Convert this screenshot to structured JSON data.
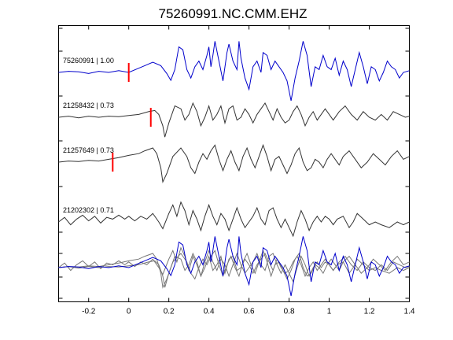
{
  "chart_data": {
    "type": "line",
    "title": "75260991.NC.CMM.EHZ",
    "xlabel": "",
    "ylabel": "",
    "xlim": [
      -0.35,
      1.4
    ],
    "xticks": [
      -0.2,
      0,
      0.2,
      0.4,
      0.6,
      0.8,
      1,
      1.2,
      1.4
    ],
    "xtick_labels": [
      "-0.2",
      "0",
      "0.2",
      "0.4",
      "0.6",
      "0.8",
      "1",
      "1.2",
      "1.4"
    ],
    "grid": false,
    "colors": {
      "primary": "#0000cc",
      "secondary": "#333333",
      "overlay": "#777777",
      "pick": "#ff0000"
    },
    "traces": [
      {
        "label": "75260991 | 1.00",
        "color": "#0000cc",
        "pick_time": 0.0,
        "samples": [
          [
            -0.35,
            0.0
          ],
          [
            -0.3,
            0.02
          ],
          [
            -0.25,
            0.01
          ],
          [
            -0.2,
            -0.02
          ],
          [
            -0.15,
            0.02
          ],
          [
            -0.1,
            0.0
          ],
          [
            -0.05,
            0.03
          ],
          [
            0.0,
            0.0
          ],
          [
            0.04,
            0.06
          ],
          [
            0.08,
            0.12
          ],
          [
            0.12,
            0.18
          ],
          [
            0.16,
            0.12
          ],
          [
            0.19,
            -0.02
          ],
          [
            0.21,
            -0.14
          ],
          [
            0.23,
            0.05
          ],
          [
            0.25,
            0.45
          ],
          [
            0.27,
            0.4
          ],
          [
            0.29,
            0.05
          ],
          [
            0.31,
            -0.1
          ],
          [
            0.33,
            0.1
          ],
          [
            0.35,
            0.2
          ],
          [
            0.37,
            0.05
          ],
          [
            0.39,
            0.3
          ],
          [
            0.4,
            0.45
          ],
          [
            0.41,
            0.1
          ],
          [
            0.42,
            0.3
          ],
          [
            0.43,
            0.55
          ],
          [
            0.45,
            0.2
          ],
          [
            0.47,
            -0.15
          ],
          [
            0.49,
            0.35
          ],
          [
            0.5,
            0.5
          ],
          [
            0.52,
            0.2
          ],
          [
            0.54,
            0.05
          ],
          [
            0.55,
            0.55
          ],
          [
            0.56,
            0.25
          ],
          [
            0.58,
            -0.1
          ],
          [
            0.6,
            -0.3
          ],
          [
            0.62,
            0.1
          ],
          [
            0.64,
            0.2
          ],
          [
            0.66,
            0.0
          ],
          [
            0.67,
            0.35
          ],
          [
            0.69,
            0.3
          ],
          [
            0.71,
            0.05
          ],
          [
            0.73,
            0.2
          ],
          [
            0.75,
            0.1
          ],
          [
            0.77,
            0.0
          ],
          [
            0.79,
            -0.15
          ],
          [
            0.81,
            -0.5
          ],
          [
            0.83,
            -0.1
          ],
          [
            0.85,
            0.2
          ],
          [
            0.87,
            0.55
          ],
          [
            0.89,
            0.3
          ],
          [
            0.91,
            -0.25
          ],
          [
            0.93,
            0.1
          ],
          [
            0.95,
            0.05
          ],
          [
            0.97,
            0.3
          ],
          [
            0.99,
            0.1
          ],
          [
            1.01,
            0.05
          ],
          [
            1.03,
            0.25
          ],
          [
            1.05,
            -0.05
          ],
          [
            1.07,
            0.2
          ],
          [
            1.09,
            0.05
          ],
          [
            1.11,
            -0.25
          ],
          [
            1.13,
            0.05
          ],
          [
            1.15,
            0.35
          ],
          [
            1.17,
            0.1
          ],
          [
            1.19,
            -0.2
          ],
          [
            1.21,
            0.1
          ],
          [
            1.23,
            0.05
          ],
          [
            1.25,
            -0.15
          ],
          [
            1.27,
            0.0
          ],
          [
            1.29,
            0.2
          ],
          [
            1.31,
            0.1
          ],
          [
            1.33,
            0.05
          ],
          [
            1.35,
            -0.1
          ],
          [
            1.37,
            0.0
          ],
          [
            1.4,
            0.03
          ]
        ]
      },
      {
        "label": "21258432 | 0.73",
        "color": "#333333",
        "pick_time": 0.11,
        "samples": [
          [
            -0.35,
            0.0
          ],
          [
            -0.3,
            0.02
          ],
          [
            -0.25,
            -0.01
          ],
          [
            -0.2,
            0.02
          ],
          [
            -0.15,
            0.0
          ],
          [
            -0.1,
            0.02
          ],
          [
            -0.05,
            0.01
          ],
          [
            0.0,
            0.03
          ],
          [
            0.05,
            0.05
          ],
          [
            0.1,
            0.1
          ],
          [
            0.13,
            0.12
          ],
          [
            0.15,
            0.05
          ],
          [
            0.17,
            -0.15
          ],
          [
            0.18,
            -0.35
          ],
          [
            0.2,
            -0.1
          ],
          [
            0.23,
            0.2
          ],
          [
            0.26,
            0.15
          ],
          [
            0.28,
            -0.05
          ],
          [
            0.3,
            0.05
          ],
          [
            0.32,
            0.25
          ],
          [
            0.34,
            0.1
          ],
          [
            0.36,
            -0.15
          ],
          [
            0.38,
            0.0
          ],
          [
            0.4,
            0.2
          ],
          [
            0.42,
            -0.05
          ],
          [
            0.44,
            0.05
          ],
          [
            0.46,
            0.2
          ],
          [
            0.48,
            -0.1
          ],
          [
            0.5,
            0.15
          ],
          [
            0.52,
            0.2
          ],
          [
            0.54,
            -0.05
          ],
          [
            0.56,
            0.0
          ],
          [
            0.58,
            0.15
          ],
          [
            0.6,
            0.05
          ],
          [
            0.62,
            -0.1
          ],
          [
            0.64,
            0.05
          ],
          [
            0.66,
            0.15
          ],
          [
            0.68,
            0.25
          ],
          [
            0.7,
            0.1
          ],
          [
            0.72,
            -0.05
          ],
          [
            0.74,
            0.15
          ],
          [
            0.76,
            0.0
          ],
          [
            0.78,
            -0.1
          ],
          [
            0.8,
            -0.05
          ],
          [
            0.82,
            0.1
          ],
          [
            0.84,
            0.2
          ],
          [
            0.86,
            0.05
          ],
          [
            0.88,
            -0.15
          ],
          [
            0.9,
            0.0
          ],
          [
            0.92,
            0.1
          ],
          [
            0.94,
            -0.05
          ],
          [
            0.96,
            0.05
          ],
          [
            0.98,
            0.15
          ],
          [
            1.0,
            0.05
          ],
          [
            1.02,
            -0.05
          ],
          [
            1.05,
            0.1
          ],
          [
            1.08,
            0.2
          ],
          [
            1.11,
            0.05
          ],
          [
            1.14,
            -0.05
          ],
          [
            1.17,
            0.1
          ],
          [
            1.2,
            0.0
          ],
          [
            1.23,
            -0.05
          ],
          [
            1.26,
            0.05
          ],
          [
            1.29,
            -0.05
          ],
          [
            1.32,
            0.1
          ],
          [
            1.35,
            0.05
          ],
          [
            1.38,
            0.0
          ],
          [
            1.4,
            0.02
          ]
        ]
      },
      {
        "label": "21257649 | 0.73",
        "color": "#333333",
        "pick_time": -0.08,
        "samples": [
          [
            -0.35,
            0.0
          ],
          [
            -0.3,
            0.02
          ],
          [
            -0.25,
            0.01
          ],
          [
            -0.2,
            0.03
          ],
          [
            -0.15,
            0.02
          ],
          [
            -0.1,
            0.05
          ],
          [
            -0.05,
            0.08
          ],
          [
            0.0,
            0.12
          ],
          [
            0.05,
            0.15
          ],
          [
            0.08,
            0.2
          ],
          [
            0.12,
            0.25
          ],
          [
            0.14,
            0.15
          ],
          [
            0.16,
            -0.1
          ],
          [
            0.17,
            -0.35
          ],
          [
            0.19,
            -0.2
          ],
          [
            0.22,
            0.1
          ],
          [
            0.26,
            0.25
          ],
          [
            0.29,
            0.1
          ],
          [
            0.31,
            -0.1
          ],
          [
            0.33,
            -0.2
          ],
          [
            0.35,
            0.0
          ],
          [
            0.37,
            0.15
          ],
          [
            0.39,
            0.05
          ],
          [
            0.41,
            0.2
          ],
          [
            0.43,
            0.3
          ],
          [
            0.45,
            0.05
          ],
          [
            0.47,
            -0.15
          ],
          [
            0.49,
            0.05
          ],
          [
            0.51,
            0.2
          ],
          [
            0.53,
            0.0
          ],
          [
            0.55,
            -0.15
          ],
          [
            0.57,
            0.1
          ],
          [
            0.59,
            0.25
          ],
          [
            0.61,
            0.05
          ],
          [
            0.63,
            -0.1
          ],
          [
            0.65,
            0.1
          ],
          [
            0.67,
            0.3
          ],
          [
            0.69,
            0.1
          ],
          [
            0.71,
            -0.15
          ],
          [
            0.73,
            0.05
          ],
          [
            0.75,
            0.1
          ],
          [
            0.77,
            -0.05
          ],
          [
            0.79,
            -0.2
          ],
          [
            0.81,
            -0.05
          ],
          [
            0.83,
            0.15
          ],
          [
            0.85,
            0.25
          ],
          [
            0.87,
            0.0
          ],
          [
            0.89,
            -0.15
          ],
          [
            0.91,
            -0.1
          ],
          [
            0.93,
            0.05
          ],
          [
            0.95,
            0.0
          ],
          [
            0.97,
            -0.1
          ],
          [
            0.99,
            0.05
          ],
          [
            1.01,
            0.15
          ],
          [
            1.03,
            0.05
          ],
          [
            1.05,
            -0.05
          ],
          [
            1.07,
            0.1
          ],
          [
            1.1,
            0.2
          ],
          [
            1.13,
            0.05
          ],
          [
            1.16,
            -0.1
          ],
          [
            1.19,
            0.0
          ],
          [
            1.22,
            0.15
          ],
          [
            1.25,
            0.05
          ],
          [
            1.28,
            -0.05
          ],
          [
            1.31,
            0.1
          ],
          [
            1.34,
            0.2
          ],
          [
            1.37,
            0.05
          ],
          [
            1.4,
            0.1
          ]
        ]
      },
      {
        "label": "21202302 | 0.71",
        "color": "#333333",
        "pick_time": null,
        "samples": [
          [
            -0.35,
            0.0
          ],
          [
            -0.32,
            0.08
          ],
          [
            -0.29,
            -0.05
          ],
          [
            -0.26,
            0.05
          ],
          [
            -0.23,
            0.12
          ],
          [
            -0.2,
            0.02
          ],
          [
            -0.17,
            0.1
          ],
          [
            -0.14,
            -0.02
          ],
          [
            -0.11,
            0.08
          ],
          [
            -0.08,
            0.05
          ],
          [
            -0.05,
            0.12
          ],
          [
            -0.02,
            0.05
          ],
          [
            0.0,
            0.1
          ],
          [
            0.03,
            0.02
          ],
          [
            0.06,
            0.1
          ],
          [
            0.09,
            0.05
          ],
          [
            0.12,
            0.15
          ],
          [
            0.15,
            0.0
          ],
          [
            0.17,
            -0.12
          ],
          [
            0.2,
            0.15
          ],
          [
            0.22,
            0.3
          ],
          [
            0.24,
            0.1
          ],
          [
            0.26,
            0.35
          ],
          [
            0.28,
            0.2
          ],
          [
            0.3,
            -0.05
          ],
          [
            0.32,
            0.2
          ],
          [
            0.34,
            0.05
          ],
          [
            0.36,
            -0.15
          ],
          [
            0.38,
            0.1
          ],
          [
            0.4,
            0.3
          ],
          [
            0.42,
            0.1
          ],
          [
            0.44,
            -0.05
          ],
          [
            0.46,
            0.15
          ],
          [
            0.48,
            0.05
          ],
          [
            0.5,
            -0.15
          ],
          [
            0.52,
            0.05
          ],
          [
            0.54,
            0.25
          ],
          [
            0.56,
            0.05
          ],
          [
            0.58,
            -0.1
          ],
          [
            0.6,
            0.0
          ],
          [
            0.62,
            0.1
          ],
          [
            0.64,
            0.25
          ],
          [
            0.66,
            0.05
          ],
          [
            0.68,
            -0.05
          ],
          [
            0.7,
            0.2
          ],
          [
            0.72,
            0.25
          ],
          [
            0.74,
            0.05
          ],
          [
            0.76,
            -0.1
          ],
          [
            0.78,
            0.05
          ],
          [
            0.8,
            -0.1
          ],
          [
            0.82,
            -0.25
          ],
          [
            0.84,
            0.0
          ],
          [
            0.86,
            0.2
          ],
          [
            0.88,
            0.05
          ],
          [
            0.9,
            -0.15
          ],
          [
            0.92,
            0.0
          ],
          [
            0.94,
            0.1
          ],
          [
            0.96,
            0.0
          ],
          [
            0.98,
            0.1
          ],
          [
            1.0,
            0.05
          ],
          [
            1.02,
            -0.05
          ],
          [
            1.04,
            0.05
          ],
          [
            1.07,
            0.1
          ],
          [
            1.1,
            -0.1
          ],
          [
            1.12,
            0.0
          ],
          [
            1.14,
            0.15
          ],
          [
            1.17,
            0.05
          ],
          [
            1.2,
            -0.05
          ],
          [
            1.23,
            0.0
          ],
          [
            1.26,
            -0.05
          ],
          [
            1.3,
            -0.1
          ],
          [
            1.34,
            0.0
          ],
          [
            1.37,
            -0.05
          ],
          [
            1.4,
            0.0
          ]
        ]
      }
    ]
  }
}
